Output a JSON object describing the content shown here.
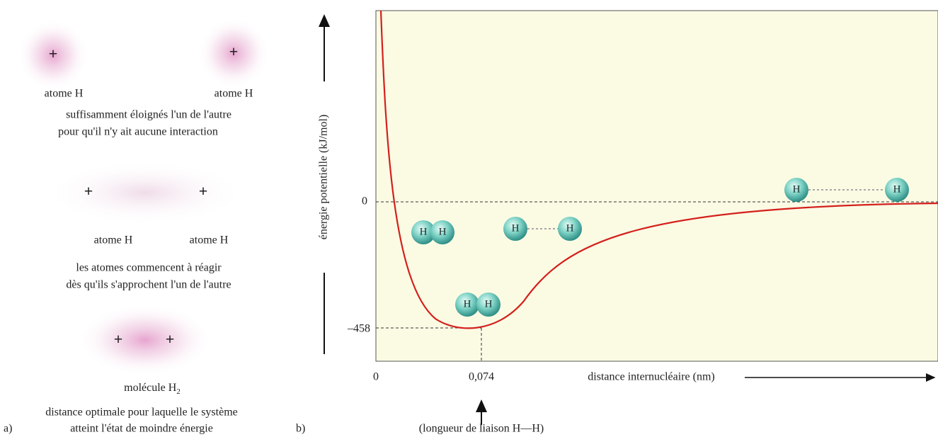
{
  "panel_a": {
    "marker": "a)",
    "stage1": {
      "labels": [
        "atome H",
        "atome H"
      ],
      "caption": [
        "suffisamment éloignés l'un de l'autre",
        "pour qu'il n'y ait aucune interaction"
      ]
    },
    "stage2": {
      "labels": [
        "atome H",
        "atome H"
      ],
      "caption": [
        "les atomes commencent à réagir",
        "dès qu'ils s'approchent l'un de l'autre"
      ]
    },
    "stage3": {
      "label": "molécule H",
      "label_subscript": "2",
      "caption": [
        "distance optimale pour laquelle le système",
        "atteint l'état de moindre énergie"
      ]
    }
  },
  "panel_b": {
    "marker": "b)",
    "y_axis_label": "énergie potentielle (kJ/mol)",
    "y_tick_labels": [
      "0",
      "–458"
    ],
    "x_tick_labels": [
      "0",
      "0,074"
    ],
    "x_axis_label": "distance internucléaire (nm)",
    "bond_length_note": "(longueur de liaison H—H)",
    "atom_symbol": "H"
  }
}
